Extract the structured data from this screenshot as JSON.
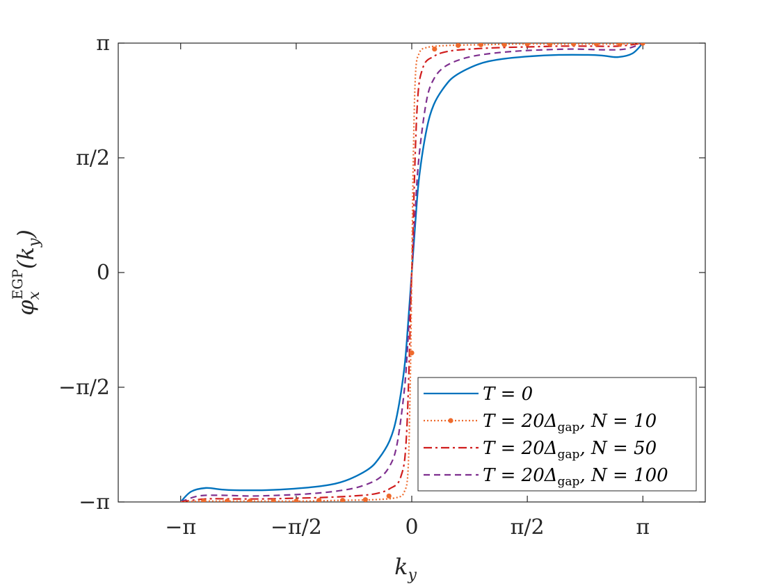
{
  "chart_data": {
    "type": "line",
    "xlabel": "k_y",
    "xlabel_sub": "y",
    "xlabel_main": "k",
    "ylabel": "φ_x^EGP(k_y)",
    "ylabel_parts": {
      "phi": "φ",
      "sup": "EGP",
      "sub": "x",
      "arg": "(k",
      "arg_sub": "y",
      "close": ")"
    },
    "xlim": [
      -3.14159,
      3.14159
    ],
    "ylim": [
      -3.14159,
      3.14159
    ],
    "x_axis_padding_note": "",
    "xticks": [
      {
        "value": -3.14159,
        "label": "−π"
      },
      {
        "value": -1.5708,
        "label": "−π/2"
      },
      {
        "value": 0,
        "label": "0"
      },
      {
        "value": 1.5708,
        "label": "π/2"
      },
      {
        "value": 3.14159,
        "label": "π"
      }
    ],
    "yticks": [
      {
        "value": -3.14159,
        "label": "−π"
      },
      {
        "value": -1.5708,
        "label": "−π/2"
      },
      {
        "value": 0,
        "label": "0"
      },
      {
        "value": 1.5708,
        "label": "π/2"
      },
      {
        "value": 3.14159,
        "label": "π"
      }
    ],
    "grid": false,
    "legend_position": "bottom-right",
    "series": [
      {
        "name": "T = 0",
        "legend": {
          "main": "T = 0",
          "parts": []
        },
        "color": "#0072BD",
        "style": "solid",
        "x": [
          -3.14,
          -3.0,
          -2.8,
          -2.6,
          -2.4,
          -2.0,
          -1.6,
          -1.2,
          -0.9,
          -0.6,
          -0.45,
          -0.3,
          -0.2,
          -0.1,
          -0.05,
          0,
          0.05,
          0.1,
          0.2,
          0.3,
          0.45,
          0.6,
          0.9,
          1.2,
          1.6,
          2.0,
          2.4,
          2.6,
          2.8,
          3.0,
          3.14
        ],
        "y": [
          -3.14,
          -3.0,
          -2.95,
          -2.97,
          -2.98,
          -2.98,
          -2.96,
          -2.92,
          -2.85,
          -2.7,
          -2.55,
          -2.3,
          -1.95,
          -1.3,
          -0.7,
          0,
          0.7,
          1.3,
          1.95,
          2.3,
          2.55,
          2.7,
          2.85,
          2.92,
          2.96,
          2.98,
          2.98,
          2.97,
          2.95,
          3.0,
          3.14
        ]
      },
      {
        "name": "T = 20Δgap, N = 10",
        "legend": {
          "main": "T = 20Δ",
          "sub": "gap",
          "rest": ", N = 10"
        },
        "color": "#EE6A2C",
        "style": "dotted-markers",
        "x": [
          -3.14,
          -2.8,
          -2.5,
          -2.0,
          -1.5,
          -1.0,
          -0.5,
          -0.2,
          -0.1,
          -0.05,
          -0.02,
          0,
          0.02,
          0.05,
          0.1,
          0.2,
          0.5,
          1.0,
          1.5,
          2.0,
          2.5,
          2.8,
          3.14
        ],
        "y": [
          -3.14,
          -3.13,
          -3.13,
          -3.13,
          -3.13,
          -3.12,
          -3.11,
          -3.08,
          -3.0,
          -2.7,
          -1.5,
          0,
          1.5,
          2.7,
          3.0,
          3.08,
          3.11,
          3.12,
          3.13,
          3.13,
          3.13,
          3.13,
          3.14
        ],
        "markers_x": [
          -2.83,
          -2.51,
          -2.2,
          -1.88,
          -1.57,
          -1.26,
          -0.94,
          -0.63,
          -0.31,
          0,
          0.31,
          0.63,
          0.94,
          1.26,
          1.57,
          1.88,
          2.2,
          2.51,
          2.83,
          3.14
        ],
        "markers_y": [
          -3.13,
          -3.13,
          -3.13,
          -3.13,
          -3.13,
          -3.12,
          -3.12,
          -3.11,
          -3.06,
          -1.1,
          3.06,
          3.11,
          3.12,
          3.12,
          3.13,
          3.13,
          3.13,
          3.13,
          3.13,
          3.14
        ]
      },
      {
        "name": "T = 20Δgap, N = 50",
        "legend": {
          "main": "T = 20Δ",
          "sub": "gap",
          "rest": ", N = 50"
        },
        "color": "#D01C1C",
        "style": "dashdot",
        "x": [
          -3.14,
          -2.8,
          -2.4,
          -2.0,
          -1.6,
          -1.2,
          -0.8,
          -0.5,
          -0.3,
          -0.15,
          -0.07,
          0,
          0.07,
          0.15,
          0.3,
          0.5,
          0.8,
          1.2,
          1.6,
          2.0,
          2.4,
          2.8,
          3.14
        ],
        "y": [
          -3.14,
          -3.1,
          -3.1,
          -3.1,
          -3.09,
          -3.08,
          -3.06,
          -3.03,
          -2.96,
          -2.8,
          -2.2,
          0,
          2.2,
          2.8,
          2.96,
          3.03,
          3.06,
          3.08,
          3.09,
          3.1,
          3.1,
          3.1,
          3.14
        ]
      },
      {
        "name": "T = 20Δgap, N = 100",
        "legend": {
          "main": "T = 20Δ",
          "sub": "gap",
          "rest": ", N = 100"
        },
        "color": "#7E2F8E",
        "style": "dashed",
        "x": [
          -3.14,
          -2.9,
          -2.6,
          -2.2,
          -1.8,
          -1.4,
          -1.0,
          -0.7,
          -0.45,
          -0.3,
          -0.2,
          -0.1,
          -0.05,
          0,
          0.05,
          0.1,
          0.2,
          0.3,
          0.45,
          0.7,
          1.0,
          1.4,
          1.8,
          2.2,
          2.6,
          2.9,
          3.14
        ],
        "y": [
          -3.14,
          -3.06,
          -3.05,
          -3.06,
          -3.05,
          -3.03,
          -2.99,
          -2.93,
          -2.82,
          -2.65,
          -2.35,
          -1.6,
          -0.9,
          0,
          0.9,
          1.6,
          2.35,
          2.65,
          2.82,
          2.93,
          2.99,
          3.03,
          3.05,
          3.06,
          3.05,
          3.06,
          3.14
        ]
      }
    ]
  }
}
